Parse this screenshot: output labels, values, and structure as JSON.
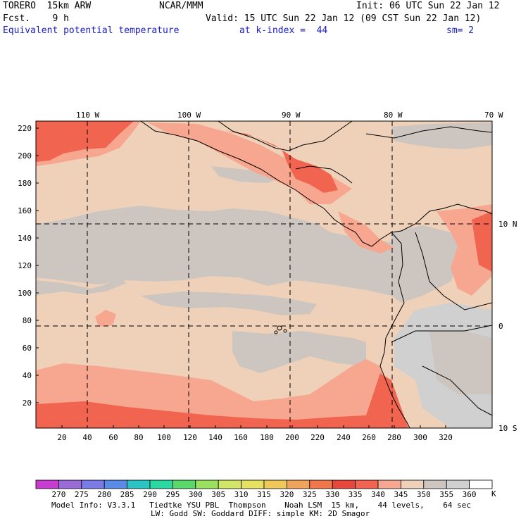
{
  "header": {
    "model": "TORERO  15km ARW",
    "org": "NCAR/MMM",
    "init": "Init: 06 UTC Sun 22 Jan 12",
    "fcst": "Fcst.    9 h",
    "valid": "Valid: 15 UTC Sun 22 Jan 12 (09 CST Sun 22 Jan 12)",
    "field": "Equivalent potential temperature",
    "level": "at k-index =  44",
    "smooth": "sm= 2"
  },
  "map": {
    "top_lon_labels": [
      "110 W",
      "100 W",
      "90 W",
      "80 W",
      "70 W"
    ],
    "right_lat_labels": [
      "10 N",
      "0",
      "10 S"
    ],
    "y_ticks": [
      "20",
      "40",
      "60",
      "80",
      "100",
      "120",
      "140",
      "160",
      "180",
      "200",
      "220"
    ],
    "x_ticks": [
      "20",
      "40",
      "60",
      "80",
      "100",
      "120",
      "140",
      "160",
      "180",
      "200",
      "220",
      "240",
      "260",
      "280",
      "300",
      "320"
    ]
  },
  "colorbar": {
    "labels": [
      "270",
      "275",
      "280",
      "285",
      "290",
      "295",
      "300",
      "305",
      "310",
      "315",
      "320",
      "325",
      "330",
      "335",
      "340",
      "345",
      "350",
      "355",
      "360"
    ],
    "unit": "K",
    "colors": [
      "#c83cd2",
      "#9a6ad8",
      "#7b7be6",
      "#5a8ae8",
      "#2ac4c4",
      "#2ad8a0",
      "#5ad86a",
      "#9ae060",
      "#d2e668",
      "#e8e060",
      "#f0c85a",
      "#f0a45a",
      "#f0784a",
      "#e8463c",
      "#f06450",
      "#f7a690",
      "#efd0b8",
      "#cdc6c0",
      "#d0d0d0",
      "#ffffff"
    ]
  },
  "footer": {
    "line1": "Model Info: V3.3.1   Tiedtke YSU PBL  Thompson    Noah LSM  15 km,    44 levels,    64 sec",
    "line2": "LW: Godd SW: Goddard DIFF: simple KM: 2D Smagor"
  }
}
